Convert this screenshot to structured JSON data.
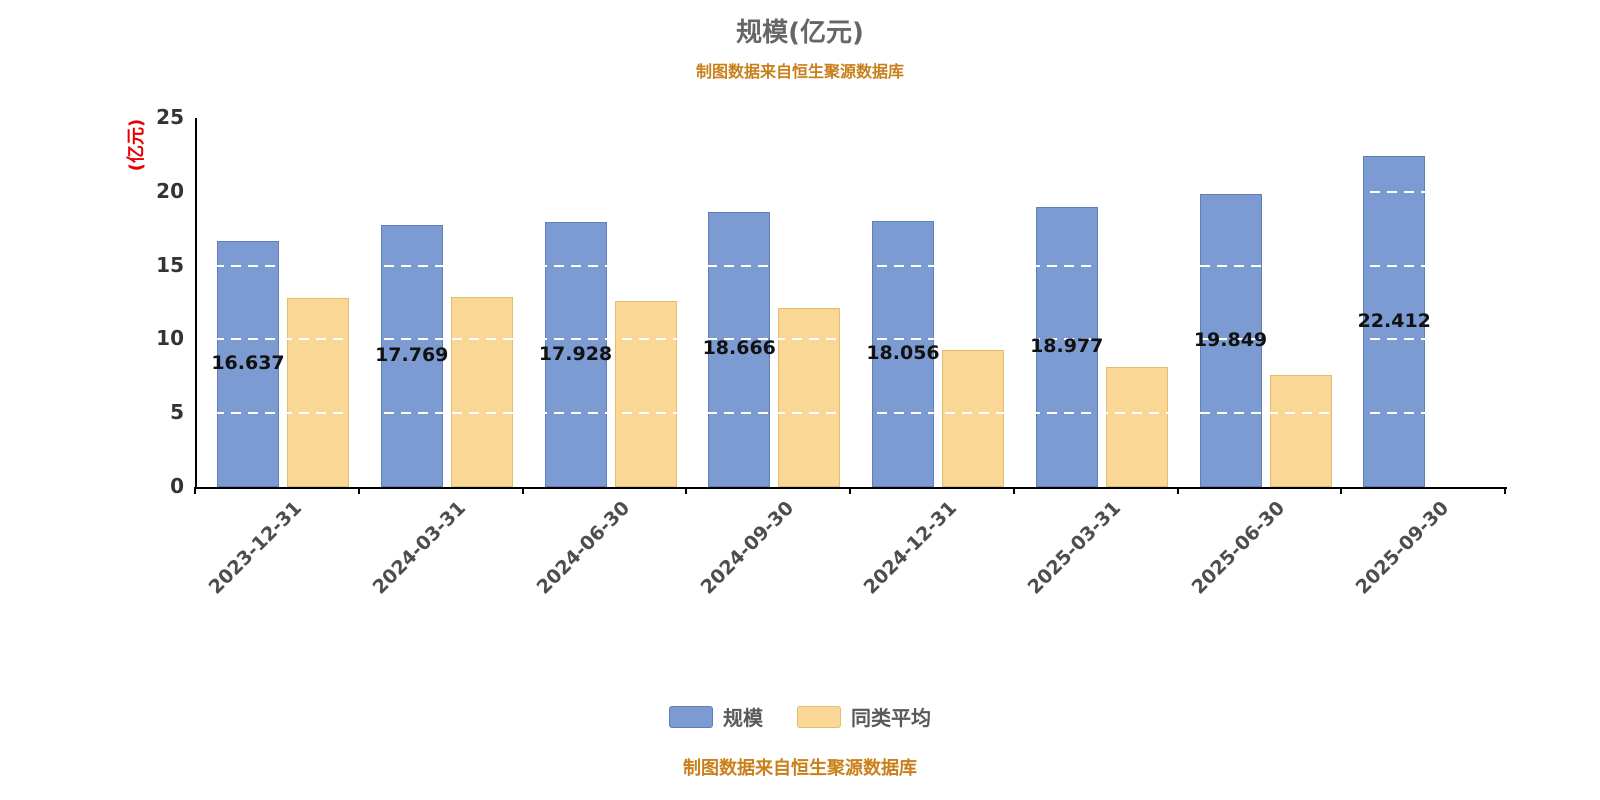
{
  "chart_data": {
    "type": "bar",
    "title": "规模(亿元)",
    "source_note": "制图数据来自恒生聚源数据库",
    "y_axis_name": "(亿元)",
    "categories": [
      "2023-12-31",
      "2024-03-31",
      "2024-06-30",
      "2024-09-30",
      "2024-12-31",
      "2025-03-31",
      "2025-06-30",
      "2025-09-30"
    ],
    "series": [
      {
        "name": "规模",
        "color": "#7B9BD2",
        "border_color": "#5E7FB8",
        "show_labels": true,
        "values": [
          16.637,
          17.769,
          17.928,
          18.666,
          18.056,
          18.977,
          19.849,
          22.412
        ]
      },
      {
        "name": "同类平均",
        "color": "#FAD795",
        "border_color": "#E3BC6F",
        "show_labels": false,
        "values": [
          12.8,
          12.9,
          12.6,
          12.1,
          9.3,
          8.1,
          7.6,
          null
        ]
      }
    ],
    "ylim": [
      0,
      25
    ],
    "yticks": [
      0,
      5,
      10,
      15,
      20,
      25
    ],
    "grid": "dashed",
    "legend_position": "bottom",
    "colors": {
      "title": "#666666",
      "axis_name": "#e60000",
      "source_note": "#C9801A",
      "axis_line": "#000000"
    }
  }
}
